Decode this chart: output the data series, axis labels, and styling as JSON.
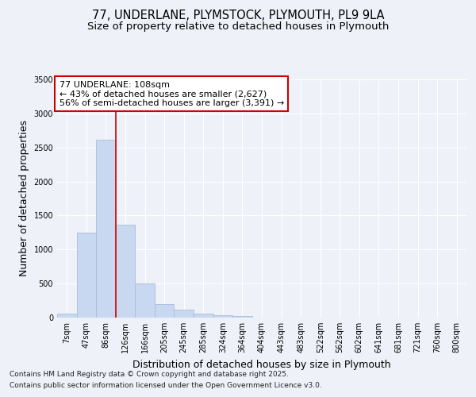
{
  "title_line1": "77, UNDERLANE, PLYMSTOCK, PLYMOUTH, PL9 9LA",
  "title_line2": "Size of property relative to detached houses in Plymouth",
  "xlabel": "Distribution of detached houses by size in Plymouth",
  "ylabel": "Number of detached properties",
  "categories": [
    "7sqm",
    "47sqm",
    "86sqm",
    "126sqm",
    "166sqm",
    "205sqm",
    "245sqm",
    "285sqm",
    "324sqm",
    "364sqm",
    "404sqm",
    "443sqm",
    "483sqm",
    "522sqm",
    "562sqm",
    "602sqm",
    "641sqm",
    "681sqm",
    "721sqm",
    "760sqm",
    "800sqm"
  ],
  "values": [
    55,
    1250,
    2610,
    1360,
    500,
    200,
    120,
    55,
    30,
    20,
    5,
    5,
    3,
    0,
    0,
    0,
    0,
    0,
    0,
    0,
    0
  ],
  "bar_color": "#c8d8f0",
  "bar_edgecolor": "#a8bcd8",
  "vline_color": "#cc0000",
  "vline_pos": 2.5,
  "property_label": "77 UNDERLANE: 108sqm",
  "annotation_line1": "← 43% of detached houses are smaller (2,627)",
  "annotation_line2": "56% of semi-detached houses are larger (3,391) →",
  "annotation_box_facecolor": "#ffffff",
  "annotation_box_edgecolor": "#cc0000",
  "ylim_max": 3500,
  "yticks": [
    0,
    500,
    1000,
    1500,
    2000,
    2500,
    3000,
    3500
  ],
  "background_color": "#eef2f8",
  "plot_bg_color": "#eef2f8",
  "grid_color": "#ffffff",
  "title_fontsize": 10.5,
  "subtitle_fontsize": 9.5,
  "axis_label_fontsize": 9,
  "tick_fontsize": 7,
  "annotation_fontsize": 8,
  "footer_fontsize": 6.5,
  "footer_line1": "Contains HM Land Registry data © Crown copyright and database right 2025.",
  "footer_line2": "Contains public sector information licensed under the Open Government Licence v3.0."
}
